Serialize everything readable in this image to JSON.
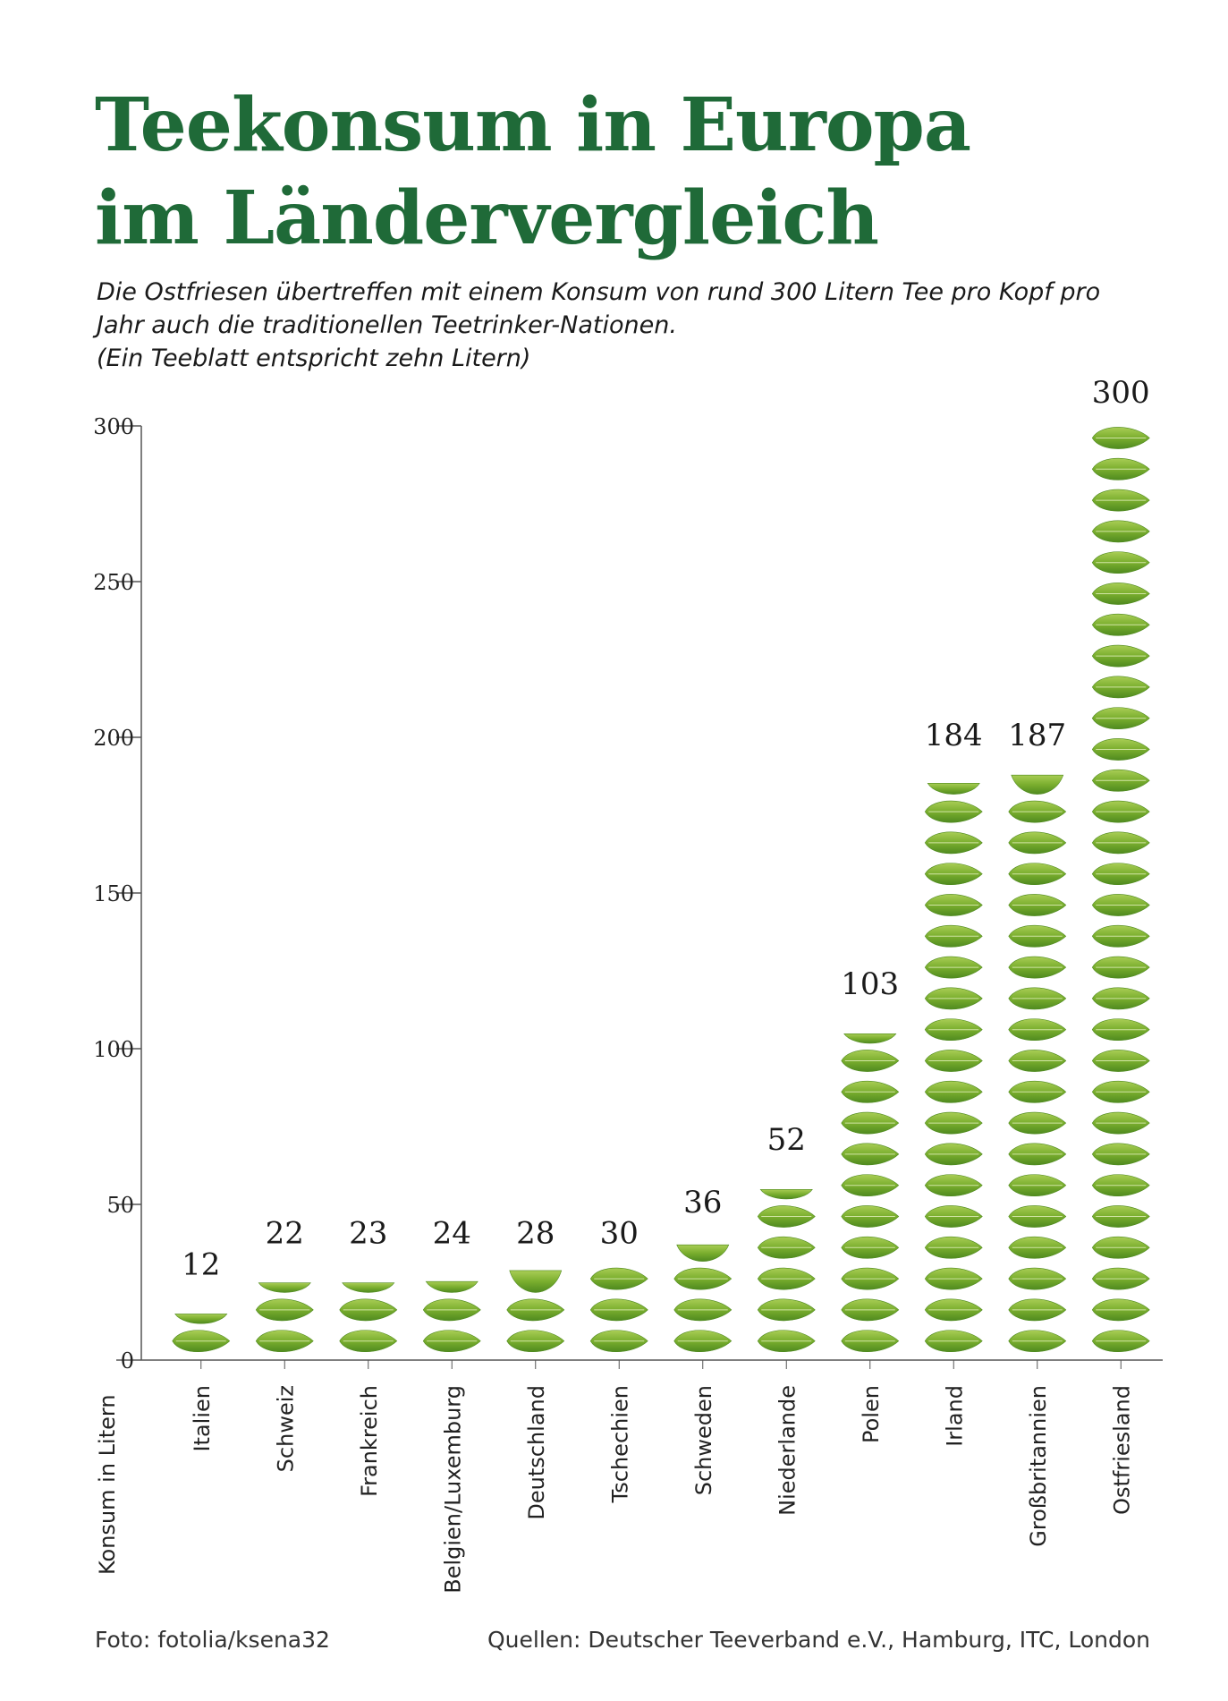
{
  "title_lines": [
    "Teekonsum in Europa",
    "im Ländervergleich"
  ],
  "subtitle_lines": [
    "Die Ostfriesen übertreffen mit einem Konsum von rund 300 Litern Tee pro Kopf pro",
    "Jahr auch die traditionellen Teetrinker-Nationen.",
    "(Ein Teeblatt entspricht zehn Litern)"
  ],
  "chart_data": {
    "type": "bar",
    "title": "Teekonsum in Europa im Ländervergleich",
    "ylabel": "Konsum in Litern",
    "xlabel": "",
    "ylim": [
      0,
      300
    ],
    "yticks": [
      0,
      50,
      100,
      150,
      200,
      250,
      300
    ],
    "unit_per_leaf": 10,
    "categories": [
      "Italien",
      "Schweiz",
      "Frankreich",
      "Belgien/Luxemburg",
      "Deutschland",
      "Tschechien",
      "Schweden",
      "Niederlande",
      "Polen",
      "Irland",
      "Großbritannien",
      "Ostfriesland"
    ],
    "values": [
      12,
      22,
      23,
      24,
      28,
      30,
      36,
      52,
      103,
      184,
      187,
      300
    ],
    "grid": false,
    "legend": "none"
  },
  "colors": {
    "title": "#1f6a38",
    "leaf_dark": "#4f8a1f",
    "leaf_mid": "#7aae2e",
    "leaf_light": "#a9cd55",
    "axis": "#555555"
  },
  "footer": {
    "photo_credit": "Foto: fotolia/ksena32",
    "sources": "Quellen: Deutscher Teeverband e.V., Hamburg, ITC, London"
  }
}
